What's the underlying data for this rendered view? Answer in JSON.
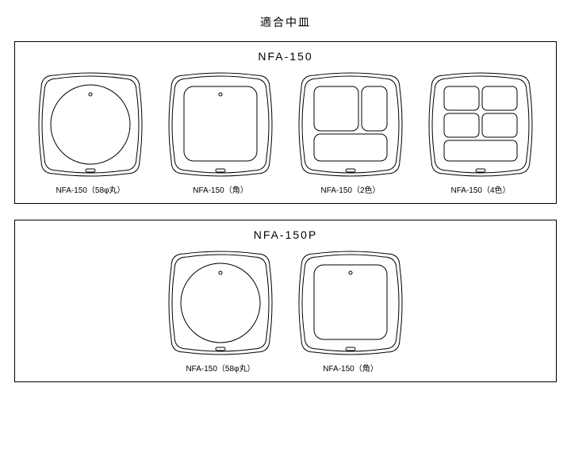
{
  "page_title": "適合中皿",
  "stroke_color": "#000000",
  "stroke_width": 1,
  "fill_color": "#ffffff",
  "bg_color": "#ffffff",
  "tray_size": 140,
  "groups": [
    {
      "title": "NFA-150",
      "items": [
        {
          "type": "circle",
          "label": "NFA-150（58φ丸）"
        },
        {
          "type": "square",
          "label": "NFA-150（角）"
        },
        {
          "type": "two",
          "label": "NFA-150（2色）"
        },
        {
          "type": "four",
          "label": "NFA-150（4色）"
        }
      ]
    },
    {
      "title": "NFA-150P",
      "items": [
        {
          "type": "circle",
          "label": "NFA-150（58φ丸）"
        },
        {
          "type": "square",
          "label": "NFA-150（角）"
        }
      ]
    }
  ]
}
